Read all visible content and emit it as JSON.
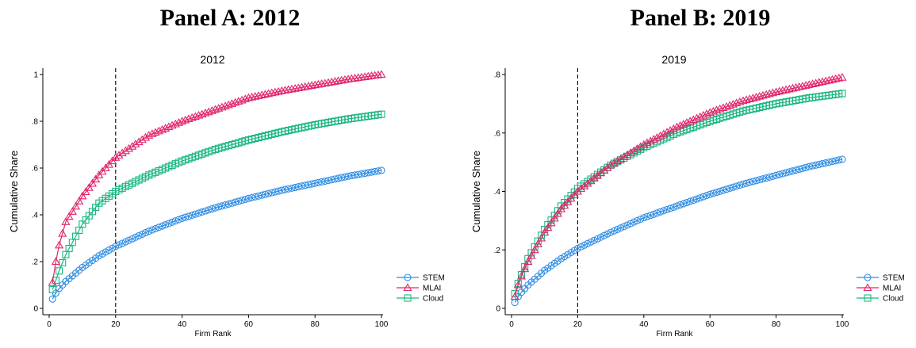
{
  "panels": [
    {
      "heading": "Panel A: 2012"
    },
    {
      "heading": "Panel B: 2019"
    }
  ],
  "colors": {
    "STEM": "#2f8de4",
    "MLAI": "#e0266d",
    "Cloud": "#19b780"
  },
  "chart_data": [
    {
      "type": "line",
      "title": "2012",
      "xlabel": "Firm Rank",
      "ylabel": "Cumulative Share",
      "xlim": [
        0,
        100
      ],
      "ylim": [
        0,
        1.0
      ],
      "xticks": [
        0,
        20,
        40,
        60,
        80,
        100
      ],
      "yticks": [
        0,
        0.2,
        0.4,
        0.6,
        0.8,
        1.0
      ],
      "ytick_labels": [
        "0",
        ".2",
        ".4",
        ".6",
        ".8",
        "1"
      ],
      "vline": 20,
      "legend": "bottom-right",
      "x": [
        1,
        2,
        3,
        5,
        10,
        15,
        20,
        30,
        40,
        50,
        60,
        70,
        80,
        90,
        100
      ],
      "series": [
        {
          "name": "STEM",
          "marker": "circle",
          "values": [
            0.04,
            0.065,
            0.085,
            0.115,
            0.175,
            0.225,
            0.265,
            0.33,
            0.385,
            0.43,
            0.47,
            0.505,
            0.535,
            0.565,
            0.59
          ]
        },
        {
          "name": "MLAI",
          "marker": "triangle",
          "values": [
            0.11,
            0.2,
            0.27,
            0.37,
            0.48,
            0.57,
            0.645,
            0.74,
            0.8,
            0.85,
            0.9,
            0.93,
            0.955,
            0.98,
            1.0
          ]
        },
        {
          "name": "Cloud",
          "marker": "square",
          "values": [
            0.08,
            0.12,
            0.16,
            0.23,
            0.36,
            0.45,
            0.5,
            0.57,
            0.63,
            0.68,
            0.72,
            0.755,
            0.785,
            0.81,
            0.83
          ]
        }
      ]
    },
    {
      "type": "line",
      "title": "2019",
      "xlabel": "Firm Rank",
      "ylabel": "Cumulative Share",
      "xlim": [
        0,
        100
      ],
      "ylim": [
        0,
        0.8
      ],
      "xticks": [
        0,
        20,
        40,
        60,
        80,
        100
      ],
      "yticks": [
        0,
        0.2,
        0.4,
        0.6,
        0.8
      ],
      "ytick_labels": [
        "0",
        ".2",
        ".4",
        ".6",
        ".8"
      ],
      "vline": 20,
      "legend": "bottom-right",
      "x": [
        1,
        2,
        3,
        5,
        10,
        15,
        20,
        30,
        40,
        50,
        60,
        70,
        80,
        90,
        100
      ],
      "series": [
        {
          "name": "STEM",
          "marker": "circle",
          "values": [
            0.02,
            0.04,
            0.055,
            0.08,
            0.13,
            0.17,
            0.205,
            0.26,
            0.31,
            0.35,
            0.39,
            0.425,
            0.455,
            0.485,
            0.51
          ]
        },
        {
          "name": "MLAI",
          "marker": "triangle",
          "values": [
            0.04,
            0.08,
            0.11,
            0.16,
            0.26,
            0.34,
            0.4,
            0.49,
            0.56,
            0.62,
            0.67,
            0.71,
            0.74,
            0.765,
            0.79
          ]
        },
        {
          "name": "Cloud",
          "marker": "square",
          "values": [
            0.05,
            0.085,
            0.115,
            0.17,
            0.27,
            0.35,
            0.41,
            0.49,
            0.55,
            0.6,
            0.64,
            0.675,
            0.7,
            0.72,
            0.735
          ]
        }
      ]
    }
  ]
}
